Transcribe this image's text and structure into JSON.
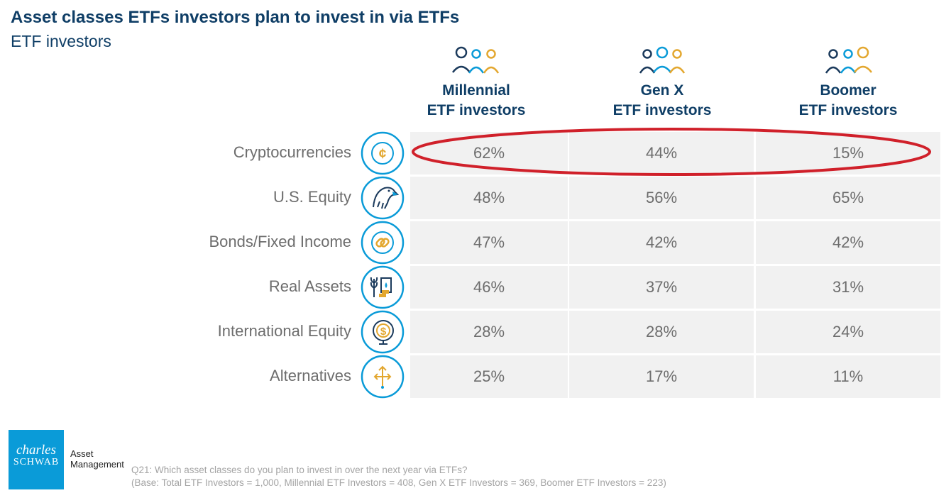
{
  "header": {
    "title": "Asset classes ETFs investors plan to invest in via ETFs",
    "subtitle": "ETF investors"
  },
  "chart_data": {
    "type": "table",
    "title": "Asset classes ETFs investors plan to invest in via ETFs",
    "subtitle": "ETF investors",
    "columns": [
      {
        "line1": "Millennial",
        "line2": "ETF investors",
        "icon": "people-group-icon"
      },
      {
        "line1": "Gen X",
        "line2": "ETF investors",
        "icon": "people-group-icon"
      },
      {
        "line1": "Boomer",
        "line2": "ETF investors",
        "icon": "people-group-icon"
      }
    ],
    "rows": [
      {
        "label": "Cryptocurrencies",
        "icon": "crypto-coin-icon",
        "values": [
          "62%",
          "44%",
          "15%"
        ],
        "highlighted": true
      },
      {
        "label": "U.S. Equity",
        "icon": "eagle-icon",
        "values": [
          "48%",
          "56%",
          "65%"
        ]
      },
      {
        "label": "Bonds/Fixed Income",
        "icon": "chain-link-icon",
        "values": [
          "47%",
          "42%",
          "42%"
        ]
      },
      {
        "label": "Real Assets",
        "icon": "real-assets-icon",
        "values": [
          "46%",
          "37%",
          "31%"
        ]
      },
      {
        "label": "International Equity",
        "icon": "globe-dollar-icon",
        "values": [
          "28%",
          "28%",
          "24%"
        ]
      },
      {
        "label": "Alternatives",
        "icon": "arrows-split-icon",
        "values": [
          "25%",
          "17%",
          "11%"
        ]
      }
    ]
  },
  "colors": {
    "title": "#0f3e66",
    "icon_ring": "#0a9bd8",
    "icon_accent": "#e3a72f",
    "highlight_ellipse": "#d0202a",
    "cell_bg": "#f1f1f1"
  },
  "brand": {
    "logo_line1": "charles",
    "logo_line2": "SCHWAB",
    "division_line1": "Asset",
    "division_line2": "Management"
  },
  "footer": {
    "question": "Q21: Which asset classes do you plan to invest in over the next year via ETFs?",
    "base": "(Base: Total ETF Investors = 1,000, Millennial ETF Investors = 408, Gen X ETF Investors = 369, Boomer ETF Investors = 223)"
  }
}
